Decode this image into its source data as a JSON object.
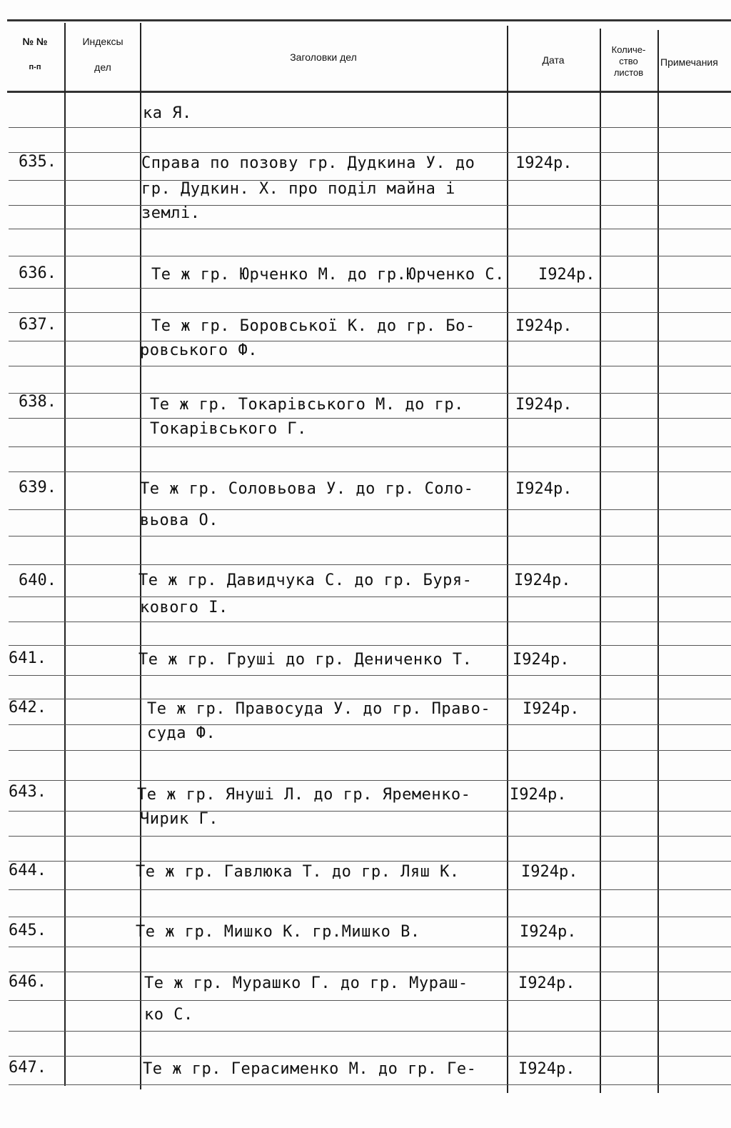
{
  "header": {
    "num": "№ №",
    "num_sub": "п-п",
    "index": "Индексы",
    "index_sub": "дел",
    "title": "Заголовки дел",
    "date": "Дата",
    "count": "Количе-\nство\nлистов",
    "notes": "Примечания"
  },
  "rows": [
    {
      "num": "",
      "lines": [
        "ка Я."
      ],
      "date": ""
    },
    {
      "num": "635.",
      "lines": [
        "Справа по позову гр. Дудкина У. до",
        "гр. Дудкин. Х. про поділ майна і",
        "землі."
      ],
      "date": "1924р."
    },
    {
      "num": "636.",
      "lines": [
        "Те ж гр. Юрченко М. до гр.Юрченко С."
      ],
      "date": "I924р."
    },
    {
      "num": "637.",
      "lines": [
        "Те ж гр. Боровської К. до гр. Бо-",
        "ровського Ф."
      ],
      "date": "I924р."
    },
    {
      "num": "638.",
      "lines": [
        "Те ж гр. Токарівського М. до гр.",
        "Токарівського Г."
      ],
      "date": "I924р."
    },
    {
      "num": "639.",
      "lines": [
        "Те ж гр. Соловьова У. до гр. Соло-",
        "вьова О."
      ],
      "date": "I924р."
    },
    {
      "num": "640.",
      "lines": [
        "Те ж гр. Давидчука С. до гр. Буря-",
        "кового І."
      ],
      "date": "I924р."
    },
    {
      "num": "641.",
      "lines": [
        "Те ж гр. Груші до гр. Дениченко Т."
      ],
      "date": "I924р."
    },
    {
      "num": "642.",
      "lines": [
        "Те ж гр. Правосуда У. до гр. Право-",
        "суда Ф."
      ],
      "date": "I924р."
    },
    {
      "num": "643.",
      "lines": [
        "Те ж гр. Януші Л. до гр. Яременко-",
        "Чирик Г."
      ],
      "date": "I924р."
    },
    {
      "num": "644.",
      "lines": [
        "Те ж гр. Гавлюка Т. до гр. Ляш К."
      ],
      "date": "I924р."
    },
    {
      "num": "645.",
      "lines": [
        "Те ж гр. Мишко К. гр.Мишко В."
      ],
      "date": "I924р."
    },
    {
      "num": "646.",
      "lines": [
        "Те ж гр. Мурашко Г. до гр. Мураш-",
        "ко С."
      ],
      "date": "I924р."
    },
    {
      "num": "647.",
      "lines": [
        "Те ж гр. Герасименко М. до гр. Ге-"
      ],
      "date": "I924р."
    }
  ]
}
